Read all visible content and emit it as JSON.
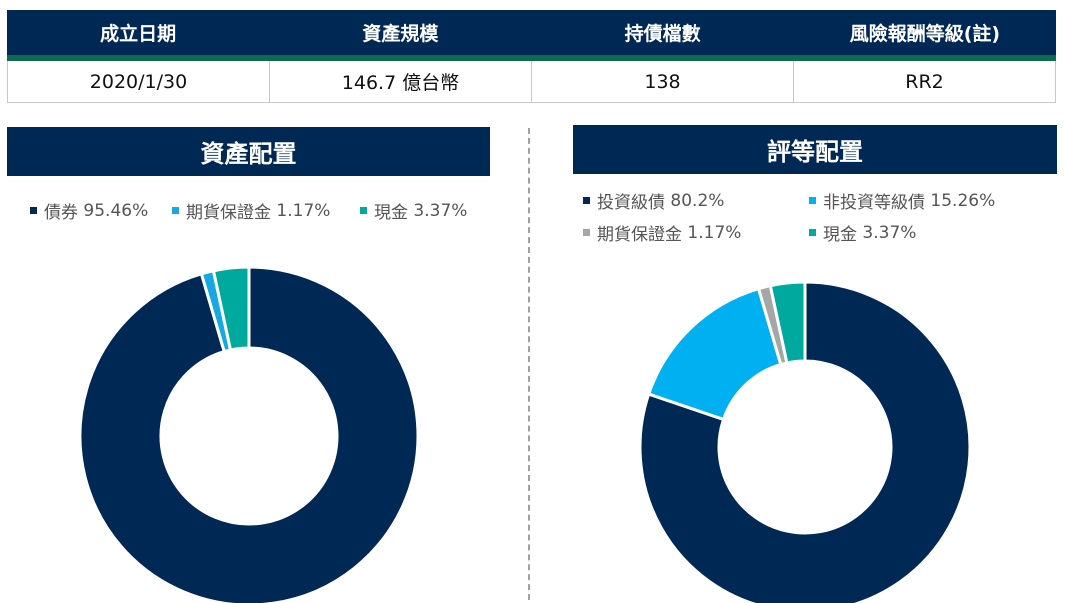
{
  "summary": {
    "headers": [
      "成立日期",
      "資產規模",
      "持債檔數",
      "風險報酬等級(註)"
    ],
    "values": [
      "2020/1/30",
      "146.7 億台幣",
      "138",
      "RR2"
    ]
  },
  "chart_data": [
    {
      "type": "pie",
      "title": "資產配置",
      "legend_placement": "top",
      "slices": [
        {
          "label": "債券",
          "value": 95.46,
          "display": "95.46%",
          "color": "#002855"
        },
        {
          "label": "期貨保證金",
          "value": 1.17,
          "display": "1.17%",
          "color": "#16a9e1"
        },
        {
          "label": "現金",
          "value": 3.37,
          "display": "3.37%",
          "color": "#00a99d"
        }
      ]
    },
    {
      "type": "pie",
      "title": "評等配置",
      "legend_placement": "top",
      "slices": [
        {
          "label": "投資級債",
          "value": 80.2,
          "display": "80.2%",
          "color": "#002855"
        },
        {
          "label": "非投資等級債",
          "value": 15.26,
          "display": "15.26%",
          "color": "#00b0f0"
        },
        {
          "label": "期貨保證金",
          "value": 1.17,
          "display": "1.17%",
          "color": "#a6a6a6"
        },
        {
          "label": "現金",
          "value": 3.37,
          "display": "3.37%",
          "color": "#00a99d"
        }
      ]
    }
  ]
}
